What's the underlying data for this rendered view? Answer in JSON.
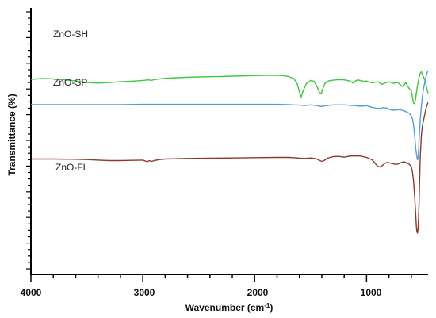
{
  "chart_data": {
    "type": "line",
    "xlabel": "Wavenumber (cm",
    "xlabel_sup": "-1",
    "xlabel_suffix": ")",
    "ylabel": "Transmittance (%)",
    "xlim": [
      4000,
      450
    ],
    "x_reversed": true,
    "x_ticks": [
      "4000",
      "3000",
      "2000",
      "1000"
    ],
    "y_ticks_labeled": false,
    "grid": false,
    "series": [
      {
        "name": "ZnO-SH",
        "color": "#3cc83c",
        "x": [
          4000,
          3900,
          3800,
          3700,
          3600,
          3500,
          3450,
          3400,
          3350,
          3300,
          3200,
          3100,
          3000,
          2950,
          2920,
          2900,
          2850,
          2800,
          2700,
          2600,
          2500,
          2400,
          2300,
          2200,
          2100,
          2000,
          1900,
          1800,
          1750,
          1700,
          1650,
          1620,
          1600,
          1585,
          1570,
          1540,
          1500,
          1470,
          1440,
          1420,
          1405,
          1390,
          1370,
          1340,
          1300,
          1250,
          1200,
          1150,
          1120,
          1100,
          1080,
          1050,
          1020,
          1000,
          980,
          950,
          900,
          880,
          860,
          840,
          800,
          780,
          760,
          740,
          720,
          700,
          680,
          660,
          650,
          640,
          620,
          600,
          590,
          580,
          570,
          560,
          550,
          540,
          530,
          520,
          510,
          500,
          490,
          480,
          470,
          460,
          450
        ],
        "y": [
          73.2,
          73.5,
          73.4,
          73.0,
          72.6,
          72.0,
          71.9,
          71.8,
          71.9,
          72.0,
          72.3,
          72.5,
          72.8,
          73.0,
          72.8,
          73.1,
          73.4,
          73.6,
          73.8,
          74.0,
          74.1,
          74.2,
          74.3,
          74.4,
          74.5,
          74.6,
          74.7,
          74.7,
          74.6,
          74.3,
          73.5,
          71.5,
          68.5,
          66.5,
          68.5,
          71.5,
          72.8,
          72.5,
          70.2,
          68.2,
          67.8,
          69.8,
          71.8,
          72.6,
          72.9,
          73.1,
          73.0,
          72.6,
          71.8,
          72.6,
          73.0,
          72.7,
          72.4,
          72.6,
          72.2,
          71.9,
          72.3,
          71.8,
          71.3,
          71.8,
          72.3,
          72.0,
          71.7,
          71.9,
          72.0,
          71.2,
          70.5,
          71.3,
          72.1,
          71.2,
          69.8,
          69.0,
          66.5,
          64.2,
          64.0,
          66.5,
          69.5,
          72.0,
          74.0,
          75.5,
          76.0,
          75.0,
          74.0,
          73.0,
          71.5,
          69.5,
          68.0
        ]
      },
      {
        "name": "ZnO-SP",
        "color": "#4f9fe0",
        "x": [
          4000,
          3800,
          3600,
          3400,
          3200,
          3000,
          2800,
          2600,
          2400,
          2200,
          2000,
          1900,
          1800,
          1700,
          1650,
          1600,
          1550,
          1500,
          1450,
          1420,
          1400,
          1380,
          1350,
          1300,
          1200,
          1100,
          1050,
          1000,
          950,
          900,
          870,
          850,
          820,
          800,
          780,
          760,
          740,
          720,
          700,
          680,
          660,
          640,
          620,
          600,
          590,
          580,
          570,
          560,
          550,
          545,
          540,
          535,
          530,
          520,
          510,
          500,
          490,
          480,
          470,
          460,
          450
        ],
        "y": [
          63.7,
          63.7,
          63.7,
          63.7,
          63.7,
          63.8,
          63.8,
          63.8,
          63.8,
          63.8,
          63.8,
          63.8,
          63.8,
          63.7,
          63.6,
          63.5,
          63.4,
          63.6,
          63.4,
          63.1,
          63.0,
          63.2,
          63.4,
          63.6,
          63.6,
          63.3,
          63.1,
          63.3,
          62.7,
          62.2,
          62.3,
          62.6,
          62.4,
          62.0,
          61.7,
          61.6,
          61.7,
          61.8,
          61.8,
          61.6,
          61.3,
          60.9,
          60.5,
          59.5,
          58.5,
          56.0,
          52.0,
          47.0,
          44.0,
          43.0,
          43.5,
          46.0,
          51.0,
          58.0,
          63.0,
          67.0,
          70.0,
          72.0,
          74.0,
          75.5,
          76.5
        ]
      },
      {
        "name": "ZnO-FL",
        "color": "#8e3a28",
        "x": [
          4000,
          3800,
          3600,
          3500,
          3400,
          3300,
          3200,
          3100,
          3000,
          2980,
          2960,
          2940,
          2920,
          2900,
          2850,
          2800,
          2600,
          2400,
          2200,
          2000,
          1800,
          1700,
          1650,
          1600,
          1550,
          1500,
          1450,
          1420,
          1400,
          1380,
          1350,
          1300,
          1250,
          1200,
          1150,
          1100,
          1050,
          1000,
          950,
          920,
          900,
          880,
          860,
          840,
          820,
          800,
          780,
          760,
          740,
          720,
          700,
          680,
          660,
          640,
          620,
          600,
          590,
          580,
          570,
          560,
          555,
          550,
          545,
          540,
          535,
          530,
          525,
          520,
          510,
          500,
          490,
          480,
          470,
          460,
          450
        ],
        "y": [
          43.3,
          43.3,
          43.2,
          43.1,
          42.9,
          42.7,
          42.7,
          42.8,
          42.9,
          42.6,
          42.3,
          42.7,
          42.4,
          42.7,
          43.1,
          43.3,
          43.5,
          43.6,
          43.7,
          43.8,
          43.9,
          43.9,
          43.8,
          43.6,
          43.5,
          43.7,
          43.4,
          42.8,
          42.4,
          42.7,
          43.6,
          44.2,
          44.3,
          44.0,
          44.4,
          44.5,
          44.4,
          43.9,
          43.0,
          41.5,
          40.6,
          40.3,
          40.8,
          41.6,
          42.0,
          41.9,
          41.7,
          41.5,
          41.3,
          41.4,
          41.8,
          42.1,
          42.2,
          41.8,
          41.4,
          40.5,
          38.5,
          35.0,
          29.0,
          22.0,
          18.0,
          16.0,
          15.5,
          17.0,
          21.0,
          28.0,
          36.0,
          44.0,
          52.0,
          56.0,
          58.0,
          60.0,
          62.0,
          63.5,
          64.5
        ]
      }
    ]
  },
  "labels": {
    "sh": "ZnO-SH",
    "sp": "ZnO-SP",
    "fl": "ZnO-FL"
  },
  "x_axis": {
    "tick_4000": "4000",
    "tick_3000": "3000",
    "tick_2000": "2000",
    "tick_1000": "1000"
  }
}
